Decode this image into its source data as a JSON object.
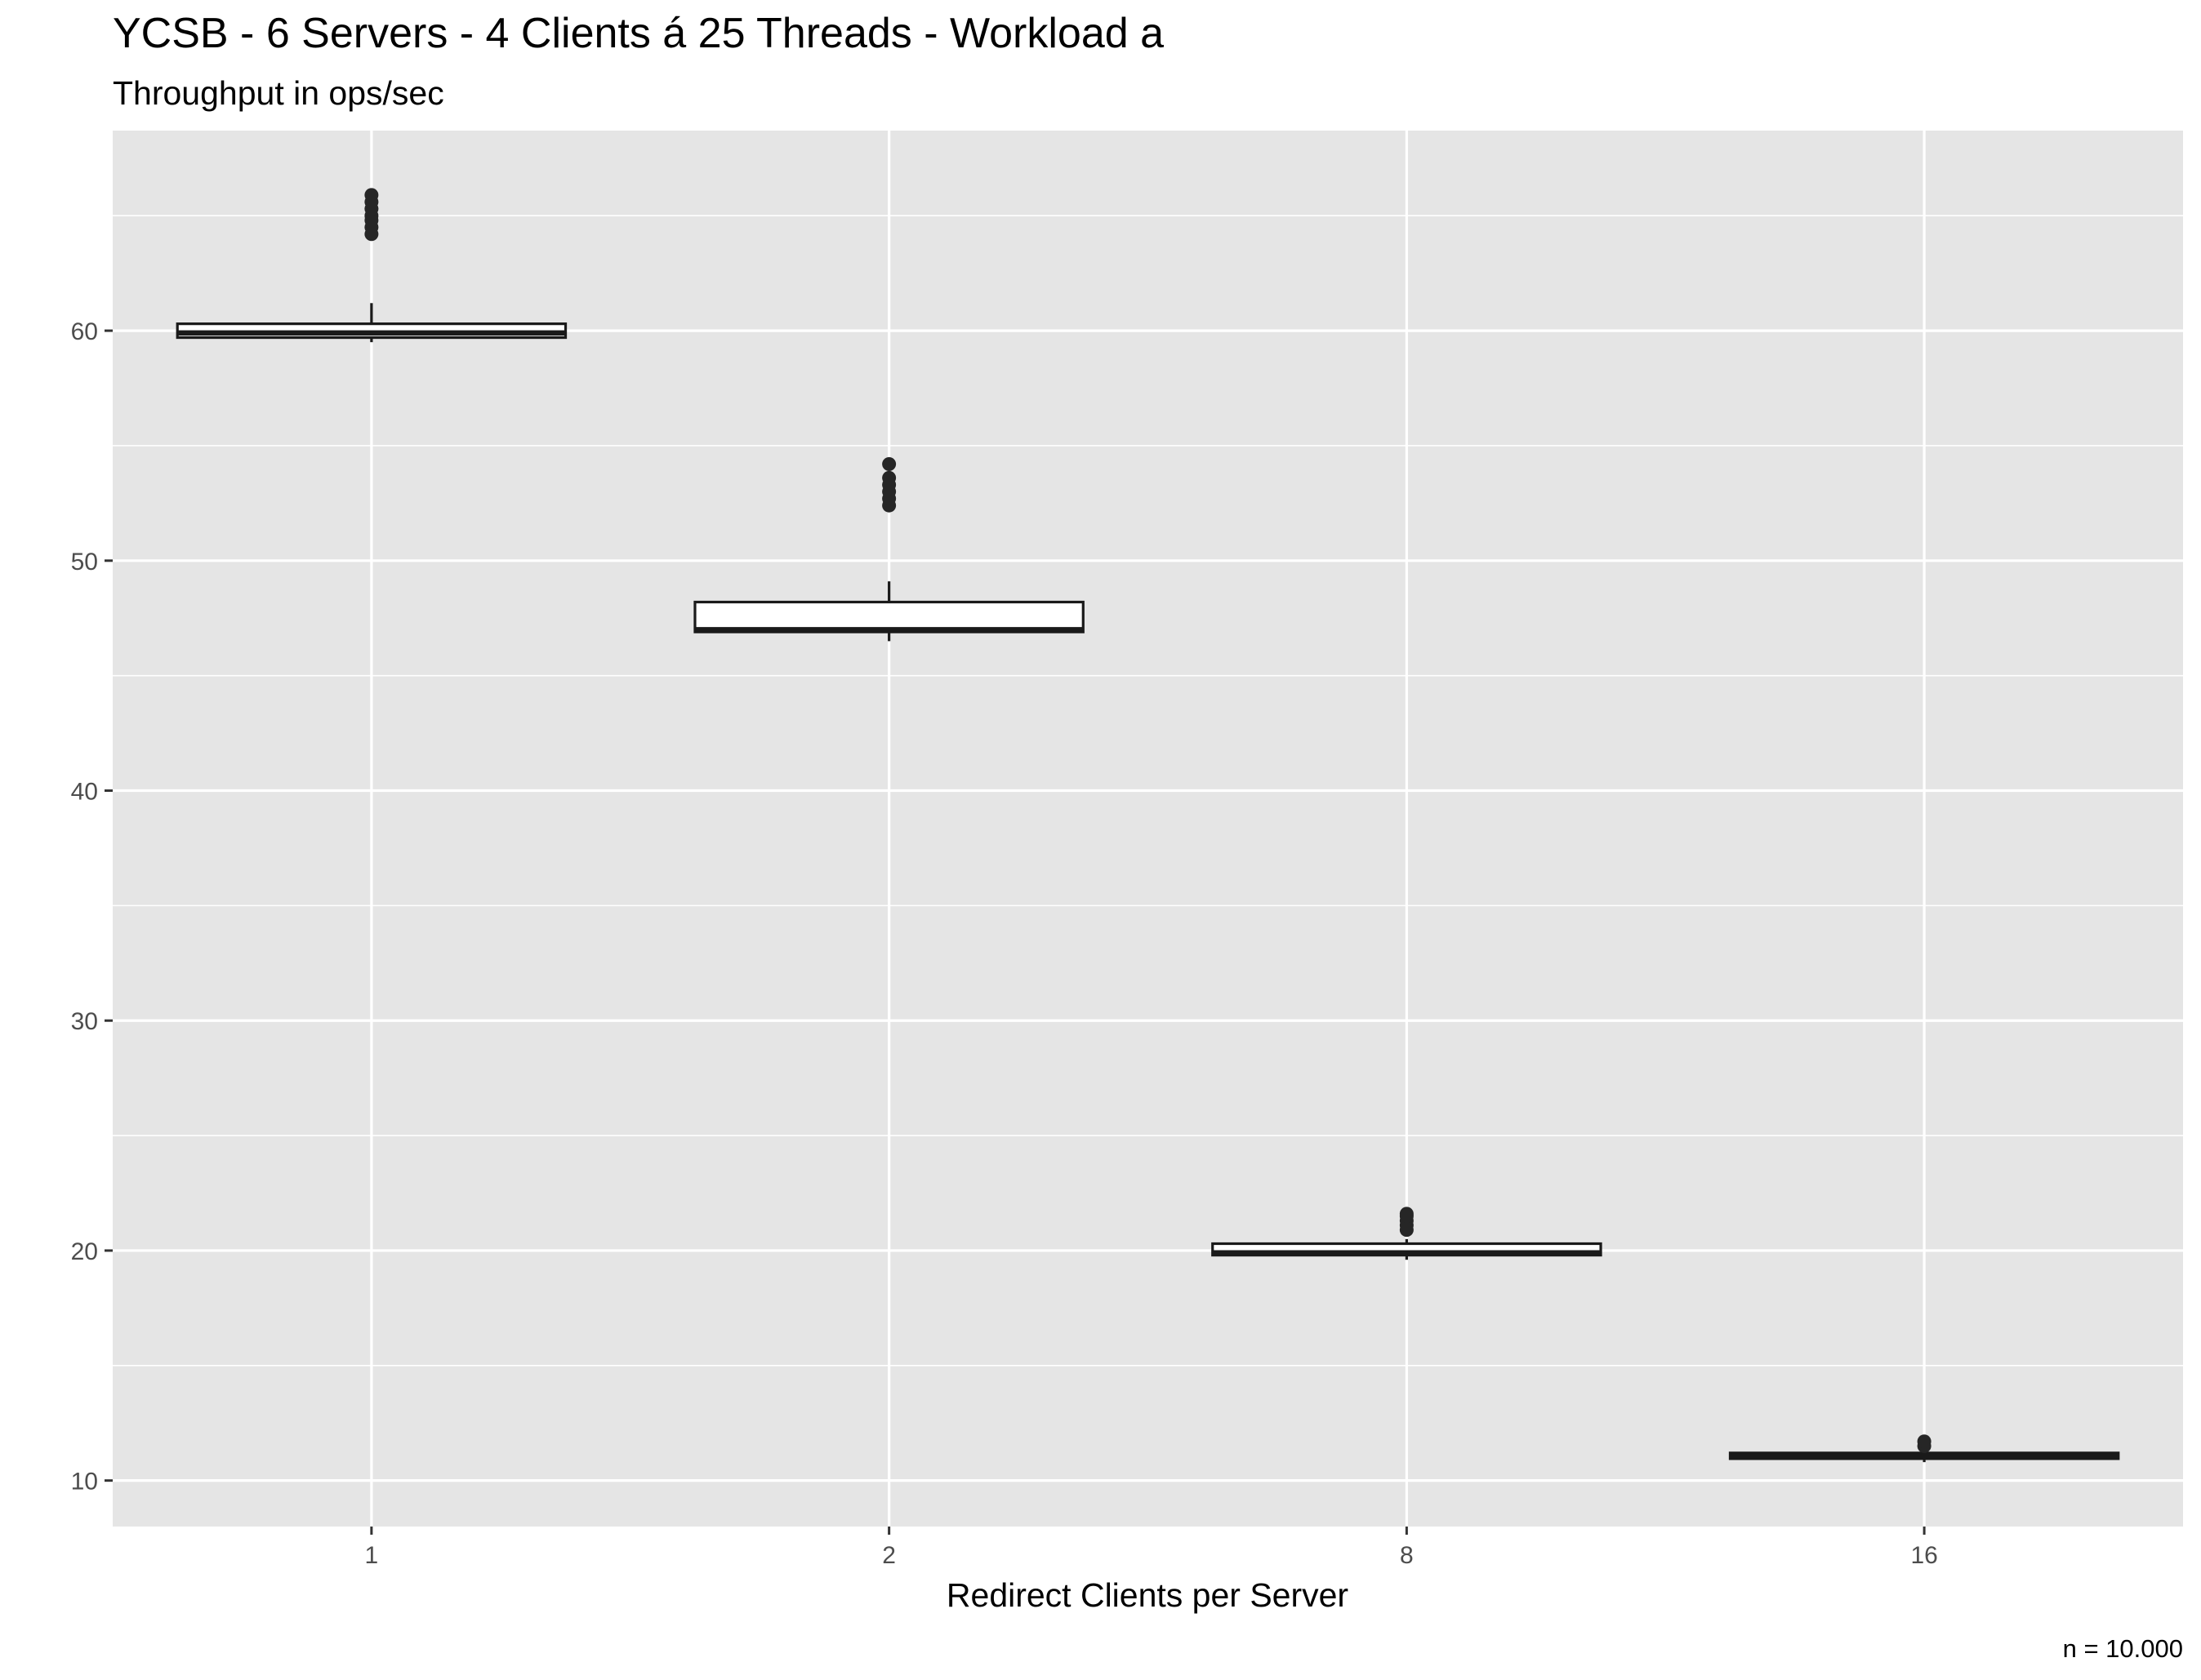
{
  "chart_data": {
    "type": "boxplot",
    "title": "YCSB - 6 Servers - 4 Clients á 25 Threads - Workload a",
    "subtitle": "Throughput in ops/sec",
    "xlabel": "Redirect Clients per Server",
    "ylabel": "",
    "caption": "n = 10.000",
    "categories": [
      "1",
      "2",
      "8",
      "16"
    ],
    "ylim": [
      8,
      68.7
    ],
    "y_ticks": [
      10,
      20,
      30,
      40,
      50,
      60
    ],
    "grid": true,
    "legend": "none",
    "boxes": [
      {
        "category": "1",
        "whisker_low": 59.5,
        "q1": 59.7,
        "median": 59.9,
        "q3": 60.3,
        "whisker_high": 61.2,
        "outliers": [
          64.2,
          64.5,
          64.8,
          65.0,
          65.3,
          65.6,
          65.9
        ]
      },
      {
        "category": "2",
        "whisker_low": 46.5,
        "q1": 46.9,
        "median": 47.0,
        "q3": 48.2,
        "whisker_high": 49.1,
        "outliers": [
          52.4,
          52.7,
          53.0,
          53.3,
          53.6,
          54.2
        ]
      },
      {
        "category": "8",
        "whisker_low": 19.6,
        "q1": 19.8,
        "median": 19.9,
        "q3": 20.3,
        "whisker_high": 20.5,
        "outliers": [
          20.9,
          21.1,
          21.3,
          21.5,
          21.6
        ]
      },
      {
        "category": "16",
        "whisker_low": 10.8,
        "q1": 10.95,
        "median": 11.05,
        "q3": 11.2,
        "whisker_high": 11.3,
        "outliers": [
          11.5,
          11.7
        ]
      }
    ],
    "colors": {
      "panel_bg": "#e5e5e5",
      "grid": "#ffffff",
      "box_fill": "#ffffff",
      "box_line": "#1a1a1a",
      "outlier": "#262626",
      "tick_text": "#4d4d4d"
    }
  }
}
